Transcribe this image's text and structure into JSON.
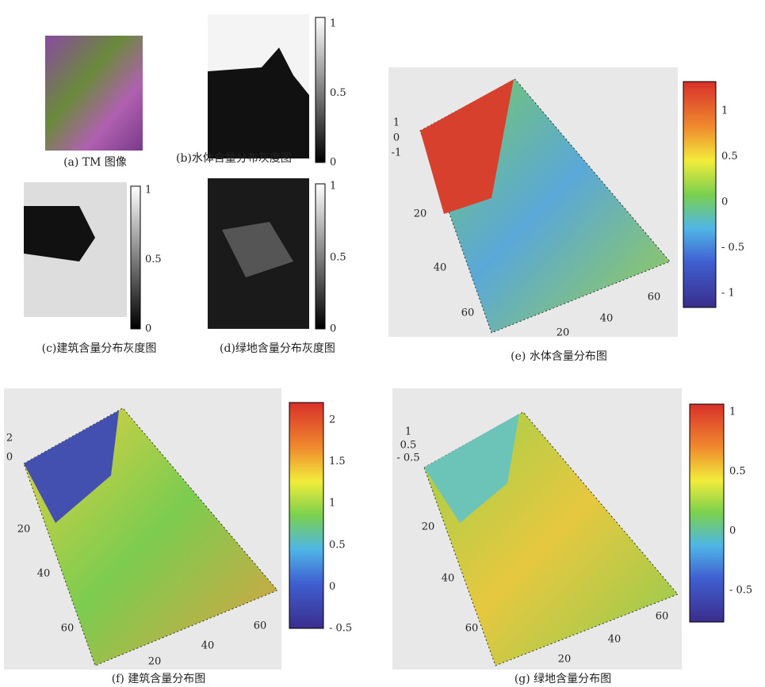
{
  "panels": [
    {
      "caption": "(a) TM 图像"
    },
    {
      "caption": "(b)水体含量分布灰度图",
      "colorbar": [
        "1",
        "0.5",
        "0"
      ]
    },
    {
      "caption": "(c)建筑含量分布灰度图",
      "colorbar": [
        "1",
        "0.5",
        "0"
      ]
    },
    {
      "caption": "(d)绿地含量分布灰度图",
      "colorbar": [
        "1",
        "0.5",
        "0"
      ]
    },
    {
      "caption": "(e) 水体含量分布图",
      "colorbar": [
        "1",
        "0.5",
        "0",
        "- 0.5",
        "- 1"
      ],
      "z_ticks": [
        "1",
        "0",
        "-1"
      ],
      "y_ticks": [
        "20",
        "40",
        "60"
      ],
      "x_ticks": [
        "20",
        "40",
        "60"
      ]
    },
    {
      "caption": "(f) 建筑含量分布图",
      "colorbar": [
        "2",
        "1.5",
        "1",
        "0.5",
        "0",
        "- 0.5"
      ],
      "z_ticks": [
        "2",
        "0"
      ],
      "y_ticks": [
        "20",
        "40",
        "60"
      ],
      "x_ticks": [
        "20",
        "40",
        "60"
      ]
    },
    {
      "caption": "(g) 绿地含量分布图",
      "colorbar": [
        "1",
        "0.5",
        "0",
        "- 0.5"
      ],
      "z_ticks": [
        "1",
        "0.5",
        "- 0.5"
      ],
      "y_ticks": [
        "20",
        "40",
        "60"
      ],
      "x_ticks": [
        "20",
        "40",
        "60"
      ]
    }
  ]
}
